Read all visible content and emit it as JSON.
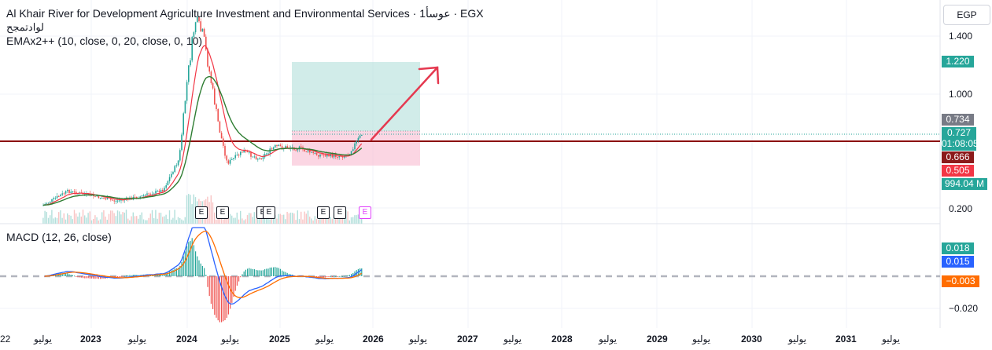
{
  "header": {
    "title": "Al Khair River for Development Agriculture Investment and Environmental Services · 1عوسأ · EGX",
    "subtitle": "لوادتمجح",
    "indicator_main": "EMAx2++ (10, close, 0, 20, close, 0, 10)",
    "indicator_macd": "MACD (12, 26, close)"
  },
  "currency_button": "EGP",
  "price_axis": {
    "ticks": [
      "1.400",
      "1.000",
      "0.200"
    ]
  },
  "macd_axis": {
    "ticks": [
      "−0.020"
    ]
  },
  "badges": {
    "target": "1.220",
    "reference": "0.734",
    "price": "0.727",
    "countdown": "01:08:05",
    "line_level": "0.666",
    "stop": "0.505",
    "volume": "994.04 M",
    "macd": "0.018",
    "signal": "0.015",
    "hist": "−0.003"
  },
  "time_axis": [
    "22",
    "يوليو",
    "2023",
    "يوليو",
    "2024",
    "يوليو",
    "2025",
    "يوليو",
    "2026",
    "يوليو",
    "2027",
    "يوليو",
    "2028",
    "يوليو",
    "2029",
    "يوليو",
    "2030",
    "يوليو",
    "2031",
    "يوليو"
  ],
  "events": [
    "E",
    "E",
    "E",
    "E",
    "E",
    "E",
    "E"
  ],
  "colors": {
    "up": "#26a69a",
    "down": "#ef5350",
    "fast_ema": "#f23645",
    "slow_ema": "#2e7d32",
    "macd_line": "#2962ff",
    "signal_line": "#ff6d00",
    "hline": "#8b0000",
    "profit_zone": "#b2dfdb",
    "loss_zone": "#f8bbd0",
    "arrow": "#e53950"
  },
  "chart_data": {
    "type": "line",
    "price_scale": {
      "ticks": [
        0.2,
        1.0,
        1.4
      ]
    },
    "series": [
      {
        "name": "close",
        "x": [
          "2022-07",
          "2022-10",
          "2023-01",
          "2023-04",
          "2023-07",
          "2023-10",
          "2023-12",
          "2024-01",
          "2024-02",
          "2024-03",
          "2024-05",
          "2024-06",
          "2024-08",
          "2024-10",
          "2024-12",
          "2025-03",
          "2025-05",
          "2025-07",
          "2025-09",
          "2025-11"
        ],
        "y": [
          0.22,
          0.32,
          0.29,
          0.25,
          0.28,
          0.33,
          0.55,
          1.1,
          1.52,
          1.4,
          0.75,
          0.52,
          0.6,
          0.55,
          0.63,
          0.62,
          0.58,
          0.57,
          0.57,
          0.727
        ]
      }
    ],
    "horizontal_line": 0.666,
    "position": {
      "entry": 0.734,
      "target": 1.22,
      "stop": 0.505
    }
  }
}
